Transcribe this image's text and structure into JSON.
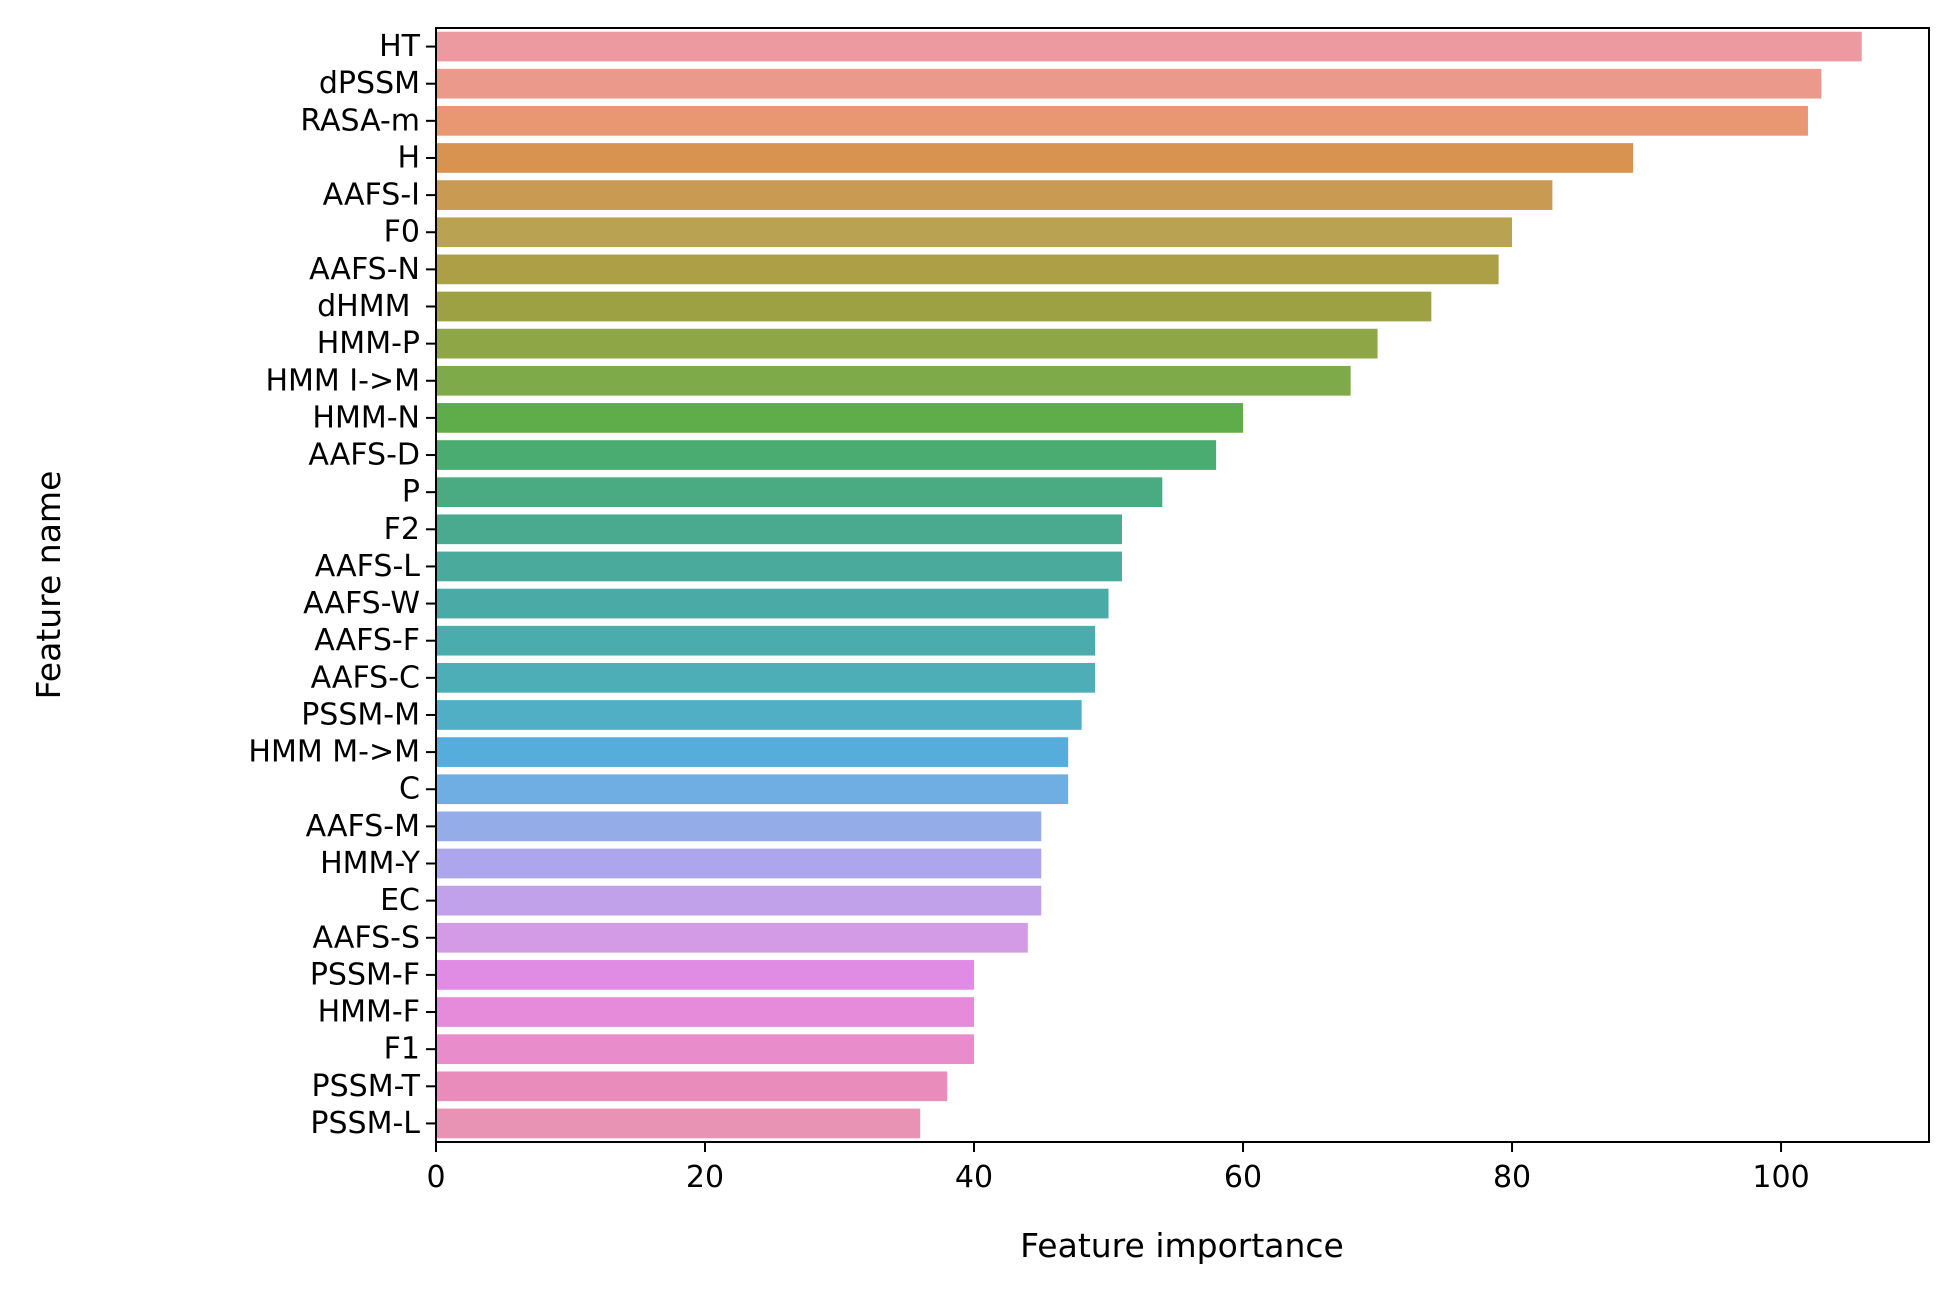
{
  "chart_data": {
    "type": "bar",
    "orientation": "horizontal",
    "xlabel": "Feature importance",
    "ylabel": "Feature name",
    "xlim": [
      0,
      111
    ],
    "xticks": [
      0,
      20,
      40,
      60,
      80,
      100
    ],
    "grid": false,
    "categories": [
      "HT",
      "dPSSM",
      "RASA-m",
      "H",
      "AAFS-I",
      "F0",
      "AAFS-N",
      "dHMM ",
      "HMM-P",
      "HMM I->M",
      "HMM-N",
      "AAFS-D",
      "P",
      "F2",
      "AAFS-L",
      "AAFS-W",
      "AAFS-F",
      "AAFS-C",
      "PSSM-M",
      "HMM M->M",
      "C",
      "AAFS-M",
      "HMM-Y",
      "EC",
      "AAFS-S",
      "PSSM-F",
      "HMM-F",
      "F1",
      "PSSM-T",
      "PSSM-L"
    ],
    "values": [
      106,
      103,
      102,
      89,
      83,
      80,
      79,
      74,
      70,
      68,
      60,
      58,
      54,
      51,
      51,
      50,
      49,
      49,
      48,
      47,
      47,
      45,
      45,
      45,
      44,
      40,
      40,
      40,
      38,
      36
    ],
    "colors": [
      "#ec9aa0",
      "#ea998b",
      "#e99673",
      "#d99350",
      "#c99a52",
      "#b9a251",
      "#ad9f46",
      "#9ea044",
      "#8fa646",
      "#7eaa49",
      "#5fac4a",
      "#4aac70",
      "#4aab82",
      "#4aaa8f",
      "#4aaa9b",
      "#4aaaa5",
      "#4bacae",
      "#4daeb8",
      "#50aec5",
      "#55addb",
      "#6eaee2",
      "#94ace8",
      "#aea6ec",
      "#c1a1ea",
      "#d39be6",
      "#e08be4",
      "#e58bd9",
      "#e88ccb",
      "#e98cbc",
      "#e993b4"
    ]
  }
}
